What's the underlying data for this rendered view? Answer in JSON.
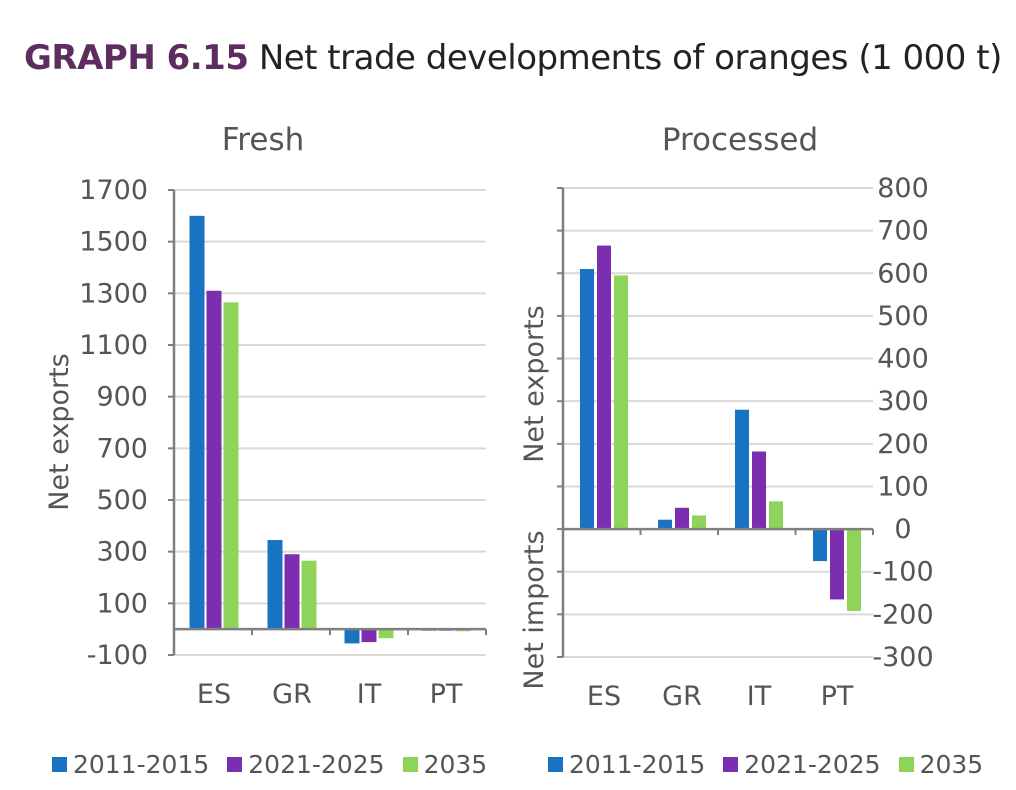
{
  "title": {
    "lead": "GRAPH 6.15",
    "rest": "Net trade developments of oranges (1 000 t)"
  },
  "colors": {
    "series": [
      "#1a73c2",
      "#7b2fb0",
      "#8fd45a"
    ],
    "axis": "#7f7f7f",
    "grid": "#d9d9d9",
    "text": "#555555"
  },
  "chart_data": [
    {
      "type": "bar",
      "panel": "fresh",
      "title": "Fresh",
      "ylabel": "Net exports",
      "ylim": [
        -100,
        1700
      ],
      "yticks": [
        "1700",
        "1500",
        "1300",
        "1100",
        "900",
        "700",
        "500",
        "300",
        "100",
        "-100"
      ],
      "ytick_values": [
        1700,
        1500,
        1300,
        1100,
        900,
        700,
        500,
        300,
        100,
        -100
      ],
      "baseline": 0,
      "categories": [
        "ES",
        "GR",
        "IT",
        "PT"
      ],
      "series": [
        {
          "name": "2011-2015",
          "values": [
            1600,
            345,
            -55,
            -5
          ]
        },
        {
          "name": "2021-2025",
          "values": [
            1310,
            290,
            -50,
            -3
          ]
        },
        {
          "name": "2035",
          "values": [
            1265,
            265,
            -35,
            -8
          ]
        }
      ],
      "legend": [
        "2011-2015",
        "2021-2025",
        "2035"
      ]
    },
    {
      "type": "bar",
      "panel": "processed",
      "title": "Processed",
      "ylabel_top": "Net exports",
      "ylabel_bottom": "Net imports",
      "ylim": [
        -300,
        800
      ],
      "yticks": [
        "800",
        "700",
        "600",
        "500",
        "400",
        "300",
        "200",
        "100",
        "0",
        "-100",
        "-200",
        "-300"
      ],
      "ytick_values": [
        800,
        700,
        600,
        500,
        400,
        300,
        200,
        100,
        0,
        -100,
        -200,
        -300
      ],
      "baseline": 0,
      "categories": [
        "ES",
        "GR",
        "IT",
        "PT"
      ],
      "series": [
        {
          "name": "2011-2015",
          "values": [
            610,
            22,
            280,
            -75
          ]
        },
        {
          "name": "2021-2025",
          "values": [
            665,
            50,
            182,
            -165
          ]
        },
        {
          "name": "2035",
          "values": [
            595,
            32,
            65,
            -192
          ]
        }
      ],
      "legend": [
        "2011-2015",
        "2021-2025",
        "2035"
      ]
    }
  ]
}
